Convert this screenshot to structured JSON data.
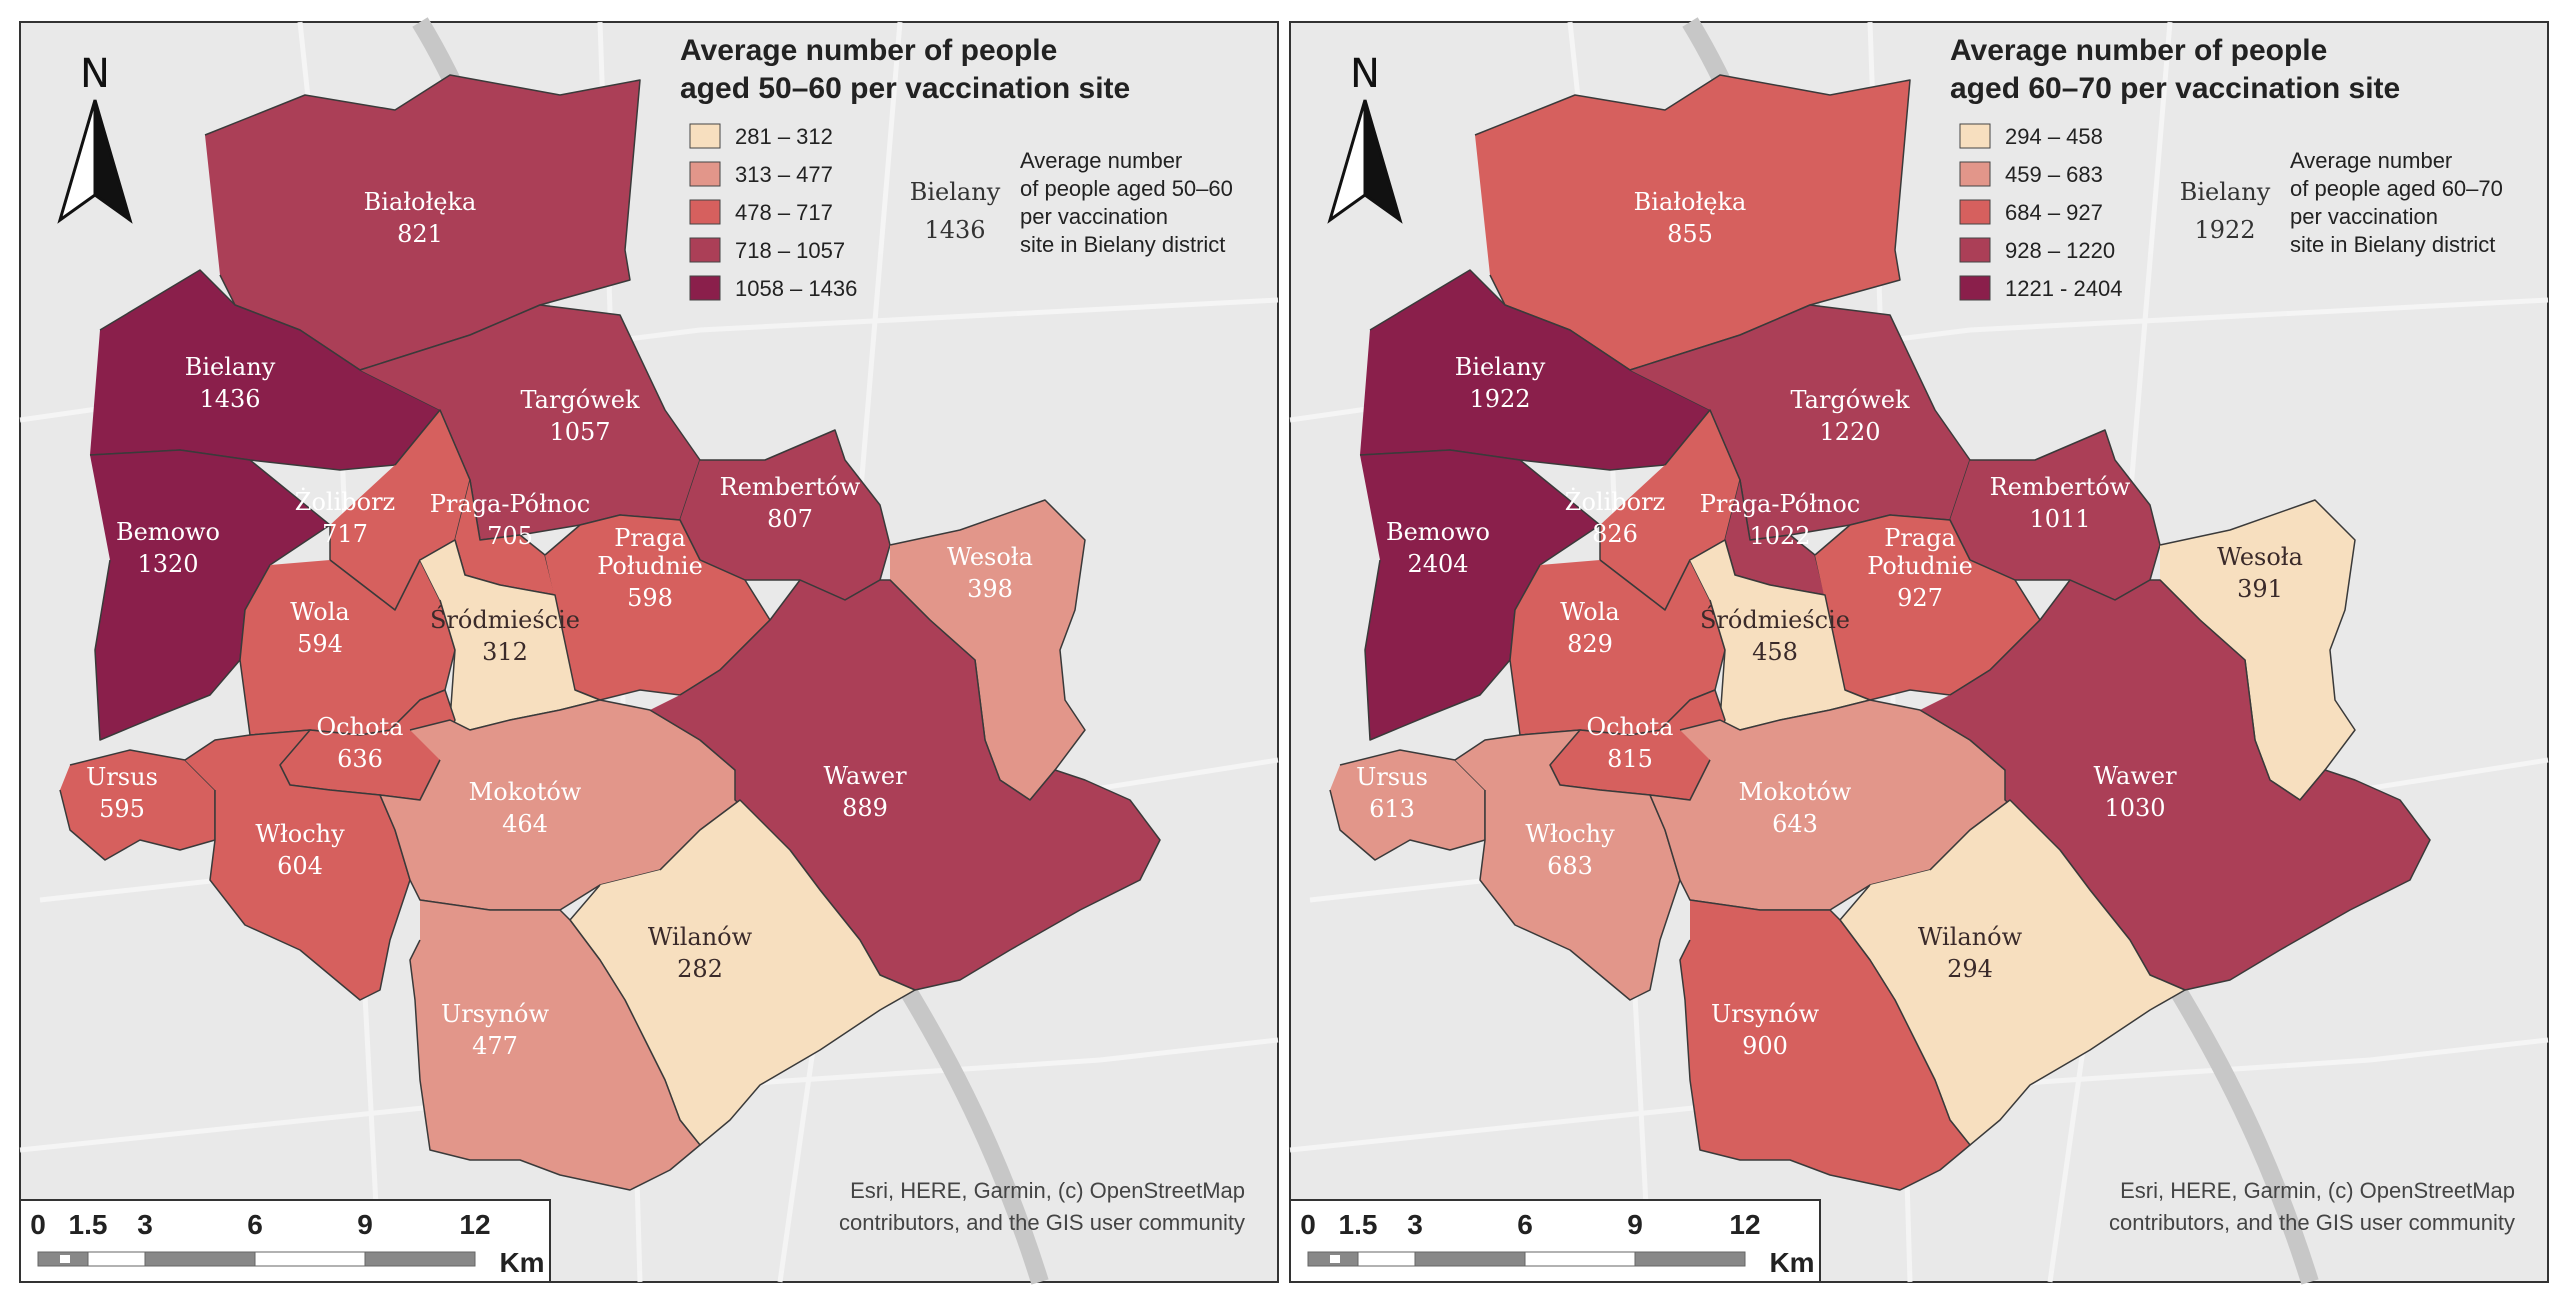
{
  "colors": {
    "class1": "#f7dfbf",
    "class2": "#e2968a",
    "class3": "#d6605e",
    "class4": "#ab3f57",
    "class5": "#8a1f4b",
    "basemap": "#e9e9e9",
    "river": "#c7c7c7",
    "border": "#3a3a3a"
  },
  "north_arrow": {
    "label": "N"
  },
  "scalebar": {
    "ticks": [
      "0",
      "1.5",
      "3",
      "6",
      "9",
      "12"
    ],
    "unit": "Km"
  },
  "attribution": {
    "line1": "Esri, HERE, Garmin, (c) OpenStreetMap",
    "line2": "contributors, and the GIS user community"
  },
  "panels": [
    {
      "title_line1": "Average number of people",
      "title_line2": "aged 50–60 per vaccination site",
      "legend": [
        "281 – 312",
        "313 – 477",
        "478 – 717",
        "718 – 1057",
        "1058 – 1436"
      ],
      "annotation": {
        "district": "Bielany",
        "value": "1436"
      },
      "note": [
        "Average number",
        "of people aged 50–60",
        "per vaccination",
        "site in Bielany district"
      ],
      "districts": [
        {
          "id": "bialoleka",
          "name": "Białołęka",
          "value": "821",
          "class": 4
        },
        {
          "id": "bielany",
          "name": "Bielany",
          "value": "1436",
          "class": 5
        },
        {
          "id": "targowek",
          "name": "Targówek",
          "value": "1057",
          "class": 4
        },
        {
          "id": "bemowo",
          "name": "Bemowo",
          "value": "1320",
          "class": 5
        },
        {
          "id": "zoliborz",
          "name": "Żoliborz",
          "value": "717",
          "class": 3
        },
        {
          "id": "praga_pn",
          "name": "Praga-Północ",
          "value": "705",
          "class": 3
        },
        {
          "id": "rembertow",
          "name": "Rembertów",
          "value": "807",
          "class": 4
        },
        {
          "id": "wesola",
          "name": "Wesoła",
          "value": "398",
          "class": 2
        },
        {
          "id": "praga_pd",
          "name": "Praga Południe",
          "value": "598",
          "class": 3
        },
        {
          "id": "wola",
          "name": "Wola",
          "value": "594",
          "class": 3
        },
        {
          "id": "srodmiescie",
          "name": "Śródmieście",
          "value": "312",
          "class": 1
        },
        {
          "id": "ochota",
          "name": "Ochota",
          "value": "636",
          "class": 3
        },
        {
          "id": "ursus",
          "name": "Ursus",
          "value": "595",
          "class": 3
        },
        {
          "id": "wlochy",
          "name": "Włochy",
          "value": "604",
          "class": 3
        },
        {
          "id": "mokotow",
          "name": "Mokotów",
          "value": "464",
          "class": 2
        },
        {
          "id": "wawer",
          "name": "Wawer",
          "value": "889",
          "class": 4
        },
        {
          "id": "wilanow",
          "name": "Wilanów",
          "value": "282",
          "class": 1
        },
        {
          "id": "ursynow",
          "name": "Ursynów",
          "value": "477",
          "class": 2
        }
      ]
    },
    {
      "title_line1": "Average number of people",
      "title_line2": "aged 60–70 per vaccination site",
      "legend": [
        "294 – 458",
        "459 – 683",
        "684 – 927",
        "928 – 1220",
        "1221 - 2404"
      ],
      "annotation": {
        "district": "Bielany",
        "value": "1922"
      },
      "note": [
        "Average number",
        "of people aged 60–70",
        "per vaccination",
        "site in Bielany district"
      ],
      "districts": [
        {
          "id": "bialoleka",
          "name": "Białołęka",
          "value": "855",
          "class": 3
        },
        {
          "id": "bielany",
          "name": "Bielany",
          "value": "1922",
          "class": 5
        },
        {
          "id": "targowek",
          "name": "Targówek",
          "value": "1220",
          "class": 4
        },
        {
          "id": "bemowo",
          "name": "Bemowo",
          "value": "2404",
          "class": 5
        },
        {
          "id": "zoliborz",
          "name": "Żoliborz",
          "value": "826",
          "class": 3
        },
        {
          "id": "praga_pn",
          "name": "Praga-Północ",
          "value": "1022",
          "class": 4
        },
        {
          "id": "rembertow",
          "name": "Rembertów",
          "value": "1011",
          "class": 4
        },
        {
          "id": "wesola",
          "name": "Wesoła",
          "value": "391",
          "class": 1
        },
        {
          "id": "praga_pd",
          "name": "Praga Południe",
          "value": "927",
          "class": 3
        },
        {
          "id": "wola",
          "name": "Wola",
          "value": "829",
          "class": 3
        },
        {
          "id": "srodmiescie",
          "name": "Śródmieście",
          "value": "458",
          "class": 1
        },
        {
          "id": "ochota",
          "name": "Ochota",
          "value": "815",
          "class": 3
        },
        {
          "id": "ursus",
          "name": "Ursus",
          "value": "613",
          "class": 2
        },
        {
          "id": "wlochy",
          "name": "Włochy",
          "value": "683",
          "class": 2
        },
        {
          "id": "mokotow",
          "name": "Mokotów",
          "value": "643",
          "class": 2
        },
        {
          "id": "wawer",
          "name": "Wawer",
          "value": "1030",
          "class": 4
        },
        {
          "id": "wilanow",
          "name": "Wilanów",
          "value": "294",
          "class": 1
        },
        {
          "id": "ursynow",
          "name": "Ursynów",
          "value": "900",
          "class": 3
        }
      ]
    }
  ]
}
